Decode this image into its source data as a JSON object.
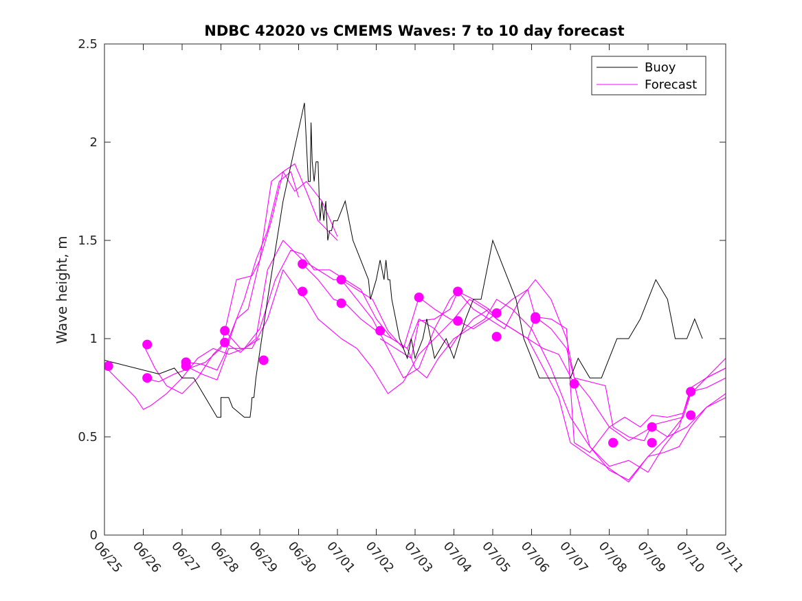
{
  "chart_data": {
    "type": "line",
    "title": "NDBC 42020 vs CMEMS Waves: 7 to 10 day forecast",
    "xlabel": "",
    "ylabel": "Wave height, m",
    "xlim": [
      "06/25",
      "07/11"
    ],
    "ylim": [
      0,
      2.5
    ],
    "yticks": [
      "0",
      "0.5",
      "1",
      "1.5",
      "2",
      "2.5"
    ],
    "xticks": [
      "06/25",
      "06/26",
      "06/27",
      "06/28",
      "06/29",
      "06/30",
      "07/01",
      "07/02",
      "07/03",
      "07/04",
      "07/05",
      "07/06",
      "07/07",
      "07/08",
      "07/09",
      "07/10",
      "07/11"
    ],
    "grid": false,
    "legend_position": "top-right",
    "legend": [
      "Buoy",
      "Forecast"
    ],
    "colors": {
      "buoy": "#000000",
      "forecast": "#ff00ff"
    },
    "x_unit_note": "x values are days since 06/25 00:00",
    "buoy": {
      "name": "Buoy",
      "x": [
        0,
        1.4,
        1.4,
        1.8,
        2.0,
        2.3,
        2.9,
        3.0,
        3.0,
        3.2,
        3.3,
        3.6,
        3.75,
        3.78,
        3.8,
        3.85,
        3.9,
        4.2,
        4.6,
        5.15,
        5.2,
        5.25,
        5.3,
        5.32,
        5.35,
        5.4,
        5.45,
        5.5,
        5.55,
        5.6,
        5.65,
        5.7,
        5.75,
        5.8,
        5.85,
        5.9,
        5.95,
        6.0,
        6.2,
        6.4,
        6.6,
        6.8,
        6.85,
        7.0,
        7.1,
        7.2,
        7.25,
        7.3,
        7.35,
        7.4,
        7.5,
        7.6,
        7.8,
        7.9,
        8.0,
        8.2,
        8.3,
        8.5,
        8.8,
        9.0,
        9.3,
        9.5,
        9.7,
        9.9,
        10.0,
        10.2,
        10.4,
        10.6,
        10.8,
        11.0,
        11.2,
        11.5,
        11.8,
        12.0,
        12.2,
        12.5,
        12.8,
        13.0,
        13.2,
        13.5,
        13.8,
        14.0,
        14.2,
        14.5,
        14.7,
        15.0,
        15.2,
        15.4
      ],
      "y": [
        0.89,
        0.82,
        0.82,
        0.85,
        0.8,
        0.8,
        0.6,
        0.6,
        0.7,
        0.7,
        0.65,
        0.6,
        0.6,
        0.65,
        0.7,
        0.7,
        0.8,
        1.2,
        1.7,
        2.2,
        2.0,
        1.8,
        1.8,
        2.1,
        1.9,
        1.8,
        1.9,
        1.9,
        1.6,
        1.7,
        1.6,
        1.7,
        1.5,
        1.55,
        1.55,
        1.6,
        1.6,
        1.6,
        1.7,
        1.5,
        1.4,
        1.3,
        1.2,
        1.3,
        1.4,
        1.3,
        1.4,
        1.3,
        1.3,
        1.2,
        1.1,
        1.0,
        0.9,
        1.0,
        0.9,
        1.0,
        1.1,
        0.9,
        1.0,
        0.9,
        1.1,
        1.2,
        1.2,
        1.4,
        1.5,
        1.4,
        1.3,
        1.2,
        1.0,
        0.9,
        0.8,
        0.8,
        0.8,
        0.8,
        0.9,
        0.8,
        0.8,
        0.9,
        1.0,
        1.0,
        1.1,
        1.2,
        1.3,
        1.2,
        1.0,
        1.0,
        1.1,
        1.0
      ]
    },
    "forecast": {
      "name": "Forecast",
      "series": [
        {
          "x": [
            0,
            0.4,
            0.8,
            1.0,
            1.2,
            1.6,
            2.0,
            2.4,
            2.8,
            3.2,
            3.6,
            4.0
          ],
          "y": [
            0.86,
            0.78,
            0.7,
            0.64,
            0.66,
            0.72,
            0.8,
            0.9,
            0.95,
            0.92,
            0.95,
            1.0
          ]
        },
        {
          "x": [
            1.0,
            1.3,
            1.6,
            2.0,
            2.4,
            2.8,
            3.2,
            3.6,
            3.9,
            4.2,
            4.5,
            4.8,
            5.0
          ],
          "y": [
            0.97,
            0.85,
            0.76,
            0.72,
            0.8,
            0.92,
            1.0,
            1.2,
            1.4,
            1.55,
            1.8,
            1.85,
            1.72
          ]
        },
        {
          "x": [
            1.0,
            1.4,
            1.8,
            2.2,
            2.6,
            3.0,
            3.4,
            3.8,
            4.0,
            4.3,
            4.6,
            4.9,
            5.2,
            5.5,
            6.0
          ],
          "y": [
            0.8,
            0.78,
            0.82,
            0.85,
            0.88,
            0.95,
            1.3,
            1.32,
            1.4,
            1.6,
            1.85,
            1.89,
            1.75,
            1.6,
            1.5
          ]
        },
        {
          "x": [
            2.1,
            2.5,
            2.9,
            3.1,
            3.4,
            3.7,
            4.0,
            4.3,
            4.6,
            4.9,
            5.2,
            5.6,
            6.0
          ],
          "y": [
            0.88,
            0.87,
            0.84,
            0.92,
            1.1,
            1.15,
            1.4,
            1.8,
            1.85,
            1.75,
            1.8,
            1.7,
            1.52
          ]
        },
        {
          "x": [
            2.1,
            2.5,
            2.9,
            3.2,
            3.6,
            4.0,
            4.4,
            4.8,
            5.1,
            5.4,
            5.8,
            6.2,
            6.6,
            7.0,
            7.4,
            7.8,
            8.0,
            8.3,
            8.6,
            9.0,
            9.4,
            9.8,
            10.1,
            10.5,
            11.0,
            11.5,
            12.0,
            12.5,
            13.0,
            13.5,
            14.0,
            14.5,
            15.0,
            15.5,
            16.0
          ],
          "y": [
            0.86,
            0.82,
            0.79,
            0.95,
            0.95,
            1.05,
            1.3,
            1.45,
            1.43,
            1.35,
            1.35,
            1.3,
            1.25,
            1.1,
            1.0,
            0.95,
            0.85,
            0.8,
            0.9,
            1.0,
            1.05,
            1.1,
            1.2,
            1.15,
            1.05,
            0.85,
            0.6,
            0.45,
            0.33,
            0.28,
            0.4,
            0.5,
            0.55,
            0.65,
            0.7
          ]
        },
        {
          "x": [
            3.1,
            3.5,
            3.8,
            4.2,
            4.6,
            5.0,
            5.2,
            5.5,
            5.8,
            6.1,
            6.5,
            6.9,
            7.3,
            7.7,
            8.1,
            8.5,
            9.0,
            9.4,
            9.8,
            10.1,
            10.5,
            10.9,
            11.3,
            11.7,
            12.0,
            12.5,
            13.0,
            13.5,
            14.0,
            14.4,
            14.8,
            15.1,
            15.5,
            16.0
          ],
          "y": [
            1.04,
            0.95,
            0.95,
            1.1,
            1.35,
            1.24,
            1.2,
            1.1,
            1.05,
            1.0,
            0.95,
            0.85,
            0.72,
            0.78,
            0.92,
            1.0,
            1.1,
            1.2,
            1.15,
            1.1,
            1.05,
            1.0,
            0.85,
            0.7,
            0.47,
            0.4,
            0.34,
            0.27,
            0.4,
            0.42,
            0.45,
            0.55,
            0.65,
            0.72
          ]
        },
        {
          "x": [
            3.1,
            3.5,
            3.9,
            4.2,
            4.6,
            5.1,
            5.5,
            5.9,
            6.1,
            6.5,
            6.9,
            7.3,
            7.7,
            8.1,
            8.5,
            8.9,
            9.1,
            9.5,
            9.9,
            10.3,
            10.7,
            11.1,
            11.5,
            11.9,
            12.1,
            12.5,
            13.0,
            13.5,
            14.1,
            14.5,
            14.9,
            15.1,
            15.5,
            16.0
          ],
          "y": [
            0.98,
            0.93,
            1.0,
            1.35,
            1.5,
            1.4,
            1.35,
            1.3,
            1.3,
            1.2,
            1.1,
            0.95,
            0.8,
            0.85,
            1.05,
            1.2,
            1.24,
            1.15,
            1.1,
            1.05,
            1.2,
            1.3,
            1.2,
            1.0,
            0.8,
            0.7,
            0.55,
            0.48,
            0.55,
            0.5,
            0.6,
            0.72,
            0.8,
            0.9
          ]
        },
        {
          "x": [
            5.1,
            5.5,
            5.9,
            6.2,
            6.6,
            7.0,
            7.4,
            7.8,
            8.1,
            8.5,
            8.9,
            9.1,
            9.5,
            9.9,
            10.1,
            10.5,
            10.9,
            11.3,
            11.7,
            12.1,
            12.5,
            13.0,
            13.5,
            14.0,
            14.4,
            14.8,
            15.1,
            15.5,
            16.0
          ],
          "y": [
            1.38,
            1.3,
            1.2,
            1.18,
            1.1,
            1.04,
            1.0,
            0.95,
            1.1,
            1.05,
            0.95,
            1.01,
            1.1,
            1.15,
            1.1,
            1.05,
            1.0,
            0.95,
            0.92,
            0.77,
            0.45,
            0.35,
            0.38,
            0.32,
            0.45,
            0.55,
            0.75,
            0.8,
            0.85
          ]
        },
        {
          "x": [
            6.1,
            6.5,
            6.9,
            7.3,
            7.7,
            8.1,
            8.5,
            8.9,
            9.1,
            9.5,
            9.9,
            10.1,
            10.5,
            10.9,
            11.1,
            11.5,
            11.9,
            12.1,
            12.5,
            13.0,
            13.4,
            13.8,
            14.1,
            14.5,
            14.9,
            15.1,
            15.5,
            16.0
          ],
          "y": [
            1.3,
            1.25,
            1.2,
            1.04,
            0.95,
            1.21,
            1.15,
            1.1,
            1.09,
            1.05,
            1.1,
            1.13,
            1.2,
            1.25,
            1.11,
            1.1,
            1.05,
            0.47,
            0.42,
            0.55,
            0.6,
            0.55,
            0.61,
            0.6,
            0.62,
            0.73,
            0.75,
            0.8
          ]
        },
        {
          "x": [
            7.1,
            7.5,
            7.9,
            8.1,
            8.5,
            8.9,
            9.1,
            9.5,
            9.9,
            10.1,
            10.5,
            10.9,
            11.1,
            11.5,
            11.9,
            12.1,
            12.5,
            12.9,
            13.1,
            13.5,
            13.9,
            14.1,
            14.5,
            14.9,
            15.1,
            15.5,
            16.0
          ],
          "y": [
            1.0,
            0.95,
            0.9,
            1.09,
            1.1,
            1.15,
            1.24,
            1.2,
            1.15,
            1.1,
            1.05,
            1.0,
            1.11,
            1.05,
            0.95,
            0.8,
            0.78,
            0.76,
            0.55,
            0.5,
            0.48,
            0.56,
            0.58,
            0.6,
            0.72,
            0.8,
            0.85
          ]
        }
      ]
    },
    "forecast_markers": {
      "x": [
        0.1,
        1.1,
        1.1,
        2.1,
        2.1,
        3.1,
        3.1,
        4.1,
        5.1,
        5.1,
        6.1,
        6.1,
        7.1,
        8.1,
        9.1,
        9.1,
        10.1,
        10.1,
        11.1,
        11.1,
        12.1,
        13.1,
        13.1,
        14.1,
        14.1,
        15.1,
        15.1
      ],
      "y": [
        0.86,
        0.97,
        0.8,
        0.88,
        0.86,
        1.04,
        0.98,
        0.89,
        1.38,
        1.24,
        1.3,
        1.18,
        1.04,
        1.21,
        1.09,
        1.24,
        1.01,
        1.13,
        1.1,
        1.11,
        0.77,
        0.47,
        0.47,
        0.55,
        0.47,
        0.61,
        0.73
      ]
    }
  }
}
